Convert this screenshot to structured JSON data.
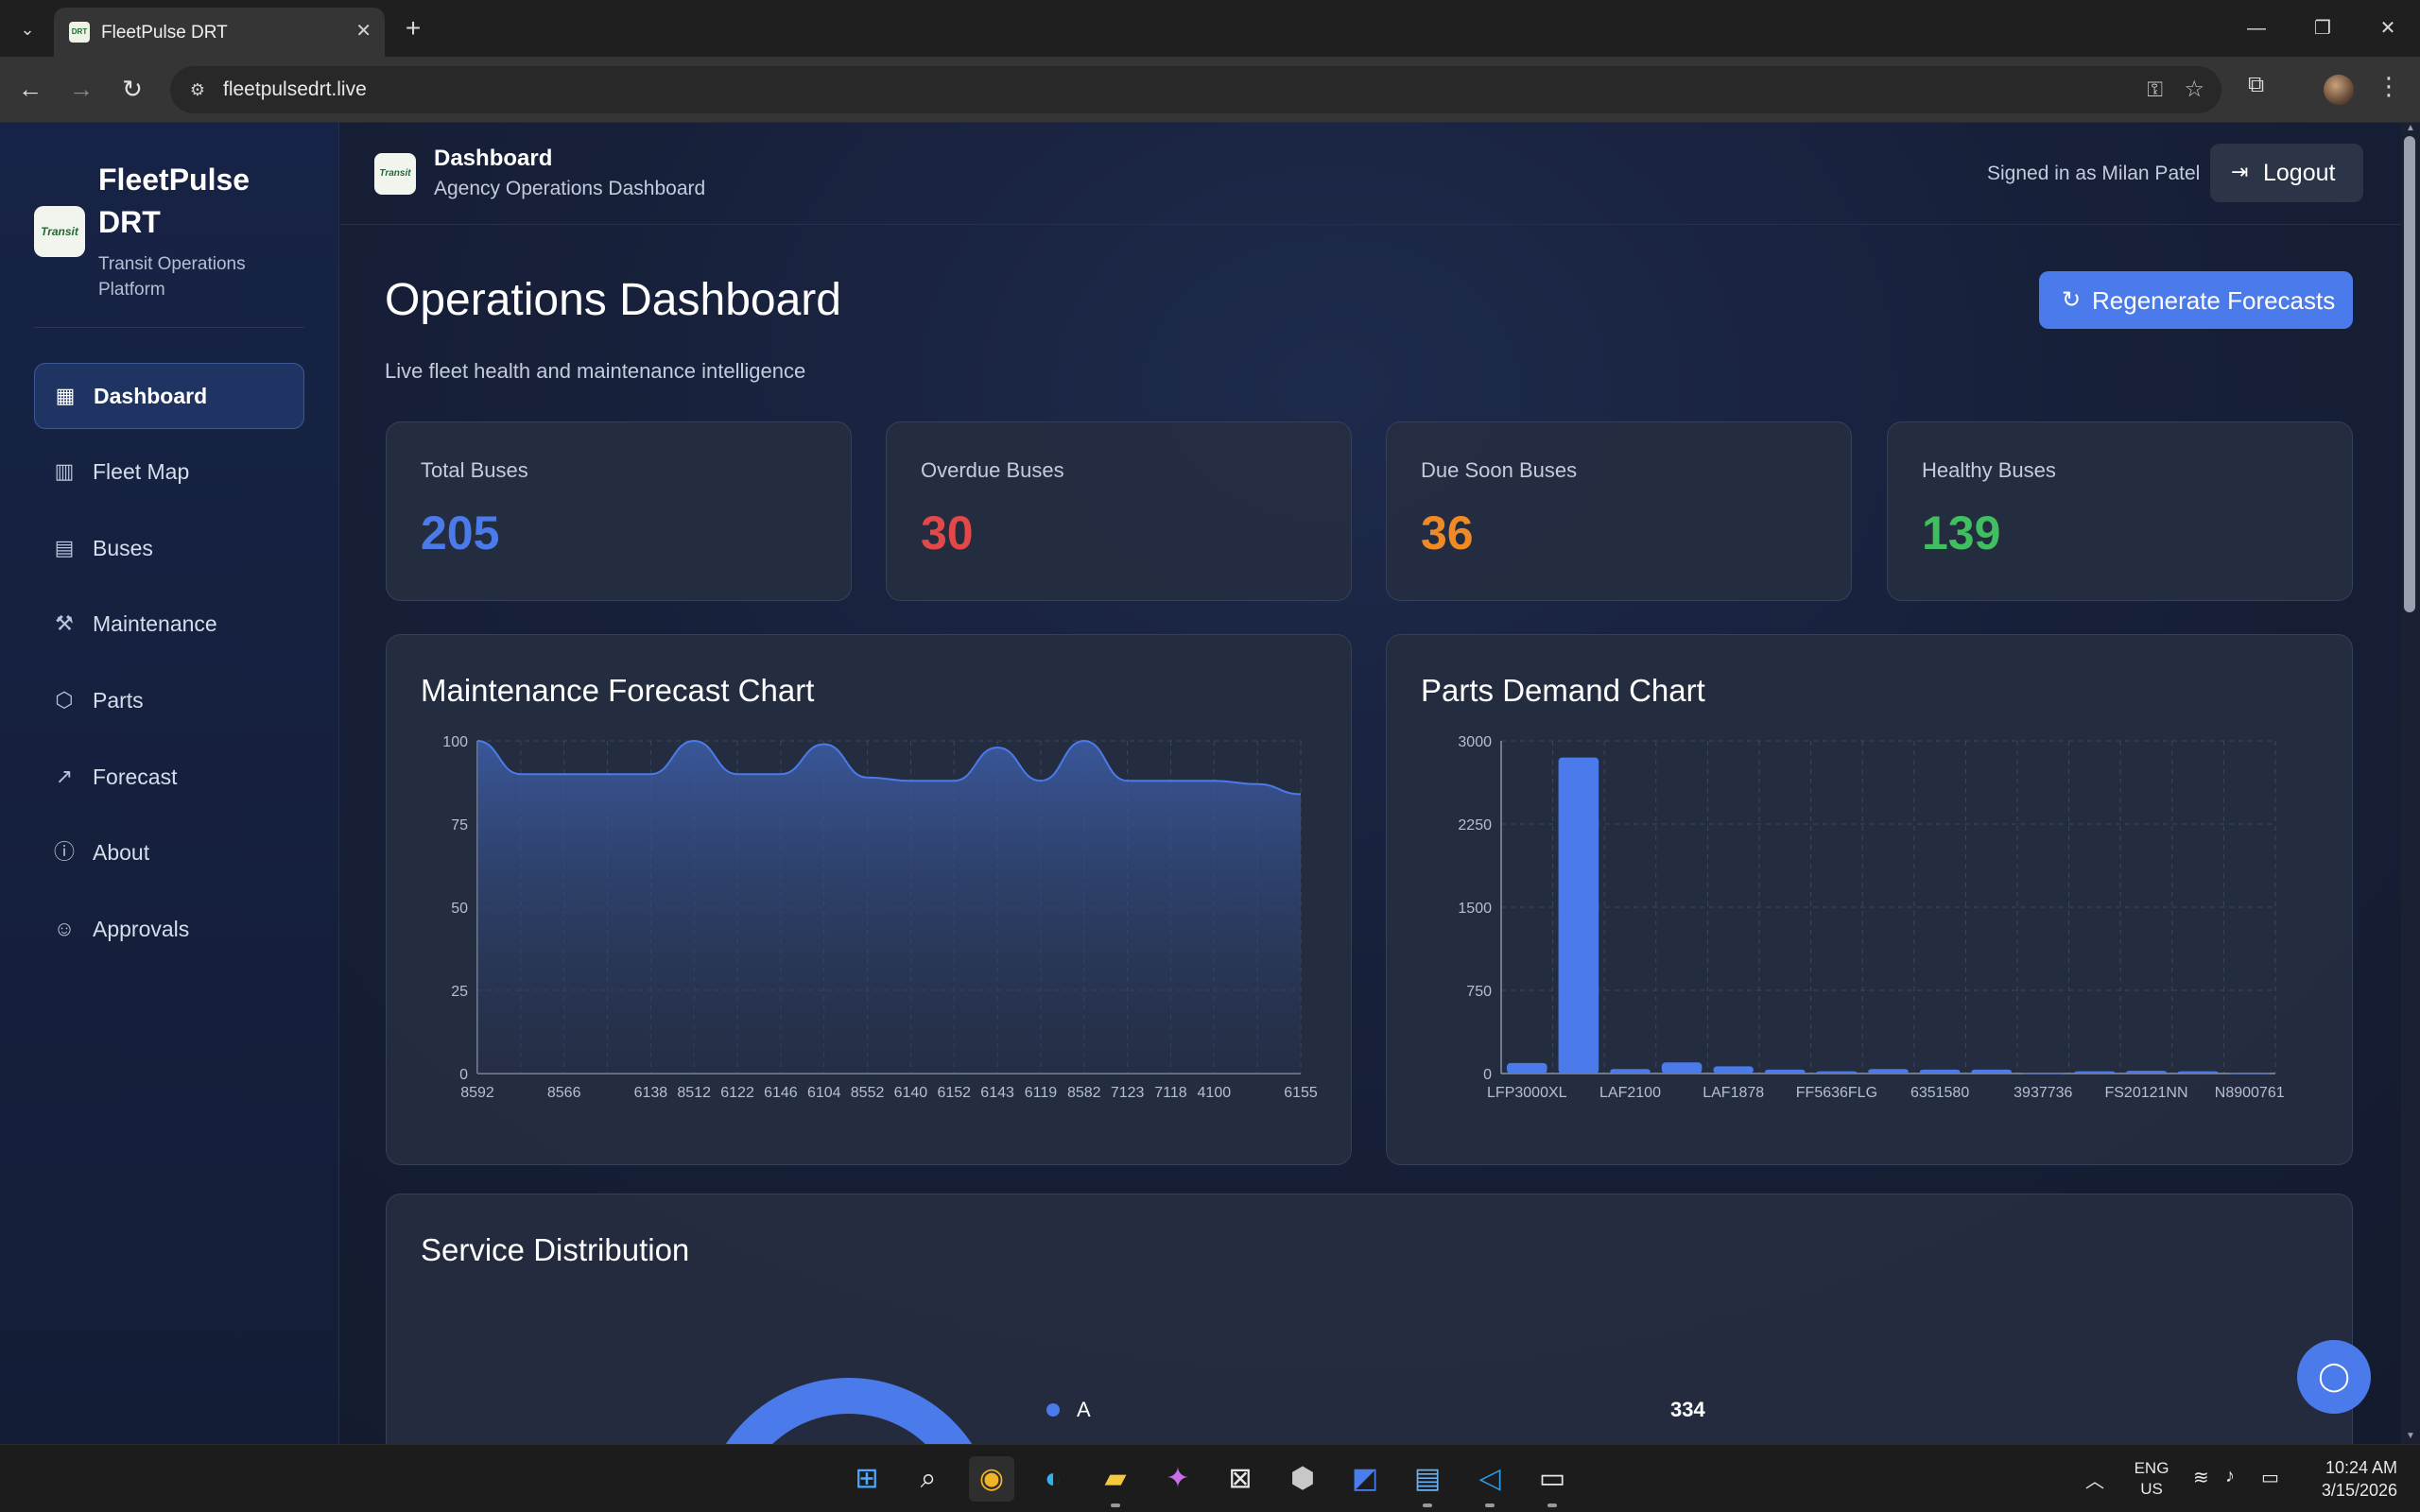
{
  "browser": {
    "tab_title": "FleetPulse DRT",
    "url": "fleetpulsedrt.live"
  },
  "sidebar": {
    "brand_title": "FleetPulse DRT",
    "brand_subtitle": "Transit Operations Platform",
    "logo_text": "Transit",
    "items": [
      {
        "label": "Dashboard",
        "icon": "dashboard-grid-icon",
        "active": true
      },
      {
        "label": "Fleet Map",
        "icon": "map-icon"
      },
      {
        "label": "Buses",
        "icon": "bus-icon"
      },
      {
        "label": "Maintenance",
        "icon": "wrench-icon"
      },
      {
        "label": "Parts",
        "icon": "package-icon"
      },
      {
        "label": "Forecast",
        "icon": "trending-up-icon"
      },
      {
        "label": "About",
        "icon": "info-icon"
      },
      {
        "label": "Approvals",
        "icon": "user-check-icon"
      }
    ]
  },
  "topbar": {
    "title": "Dashboard",
    "subtitle": "Agency Operations Dashboard",
    "signed_in": "Signed in as Milan Patel",
    "logout_label": "Logout"
  },
  "page": {
    "title": "Operations Dashboard",
    "subtitle": "Live fleet health and maintenance intelligence",
    "regenerate_label": "Regenerate Forecasts"
  },
  "stats": [
    {
      "label": "Total Buses",
      "value": "205",
      "color": "#4b7bea"
    },
    {
      "label": "Overdue Buses",
      "value": "30",
      "color": "#e24848"
    },
    {
      "label": "Due Soon Buses",
      "value": "36",
      "color": "#f08a24"
    },
    {
      "label": "Healthy Buses",
      "value": "139",
      "color": "#3fbf5f"
    }
  ],
  "panels": {
    "maintenance_title": "Maintenance Forecast Chart",
    "parts_title": "Parts Demand Chart",
    "service_title": "Service Distribution"
  },
  "colors": {
    "accent": "#4b7bea",
    "overdue": "#e24848",
    "due_soon": "#f08a24",
    "healthy": "#3fbf5f"
  },
  "chart_data": [
    {
      "type": "area",
      "title": "Maintenance Forecast Chart",
      "x": [
        "8592",
        "",
        "8566",
        "",
        "6138",
        "8512",
        "6122",
        "6146",
        "6104",
        "8552",
        "6140",
        "6152",
        "6143",
        "6119",
        "8582",
        "7123",
        "7118",
        "4100",
        "",
        "6155"
      ],
      "values": [
        100,
        90,
        90,
        90,
        90,
        100,
        90,
        90,
        99,
        89,
        88,
        88,
        98,
        88,
        100,
        88,
        88,
        88,
        87,
        84
      ],
      "ylim": [
        0,
        100
      ],
      "yticks": [
        0,
        25,
        50,
        75,
        100
      ],
      "grid": true
    },
    {
      "type": "bar",
      "title": "Parts Demand Chart",
      "categories": [
        "LFP3000XL",
        "",
        "LAF2100",
        "",
        "LAF1878",
        "",
        "FF5636FLG",
        "",
        "6351580",
        "",
        "3937736",
        "",
        "FS20121NN",
        "",
        "N8900761"
      ],
      "values": [
        95,
        2850,
        40,
        100,
        65,
        35,
        20,
        40,
        35,
        35,
        5,
        20,
        25,
        20,
        5
      ],
      "ylim": [
        0,
        3000
      ],
      "yticks": [
        0,
        750,
        1500,
        2250,
        3000
      ],
      "grid": true
    },
    {
      "type": "pie",
      "title": "Service Distribution",
      "labels": [
        "A"
      ],
      "values": [
        334
      ]
    }
  ],
  "taskbar": {
    "apps": [
      "start-icon",
      "search-icon",
      "chrome-icon",
      "edge-icon",
      "file-explorer-icon",
      "copilot-icon",
      "store-icon",
      "app-icon",
      "azure-icon",
      "notepad-icon",
      "vscode-icon",
      "terminal-icon"
    ],
    "lang_top": "ENG",
    "lang_bottom": "US",
    "time": "10:24 AM",
    "date": "3/15/2026"
  }
}
